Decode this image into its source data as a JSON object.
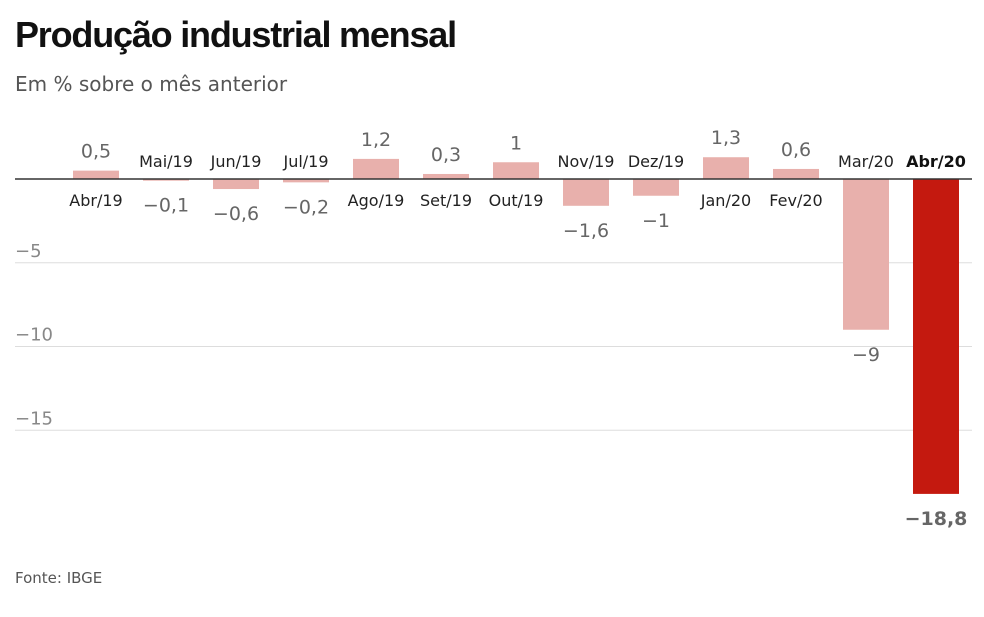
{
  "header": {
    "title": "Produção industrial mensal",
    "subtitle": "Em % sobre o mês anterior"
  },
  "footer": {
    "source": "Fonte: IBGE"
  },
  "colors": {
    "bar_default": "#e8b0ac",
    "bar_highlight": "#c4190f",
    "label_text": "#666666",
    "category_text": "#222222",
    "gridline": "#dddddd",
    "zero_line": "#333333"
  },
  "chart_data": {
    "type": "bar",
    "title": "Produção industrial mensal",
    "subtitle": "Em % sobre o mês anterior",
    "categories": [
      "Abr/19",
      "Mai/19",
      "Jun/19",
      "Jul/19",
      "Ago/19",
      "Set/19",
      "Out/19",
      "Nov/19",
      "Dez/19",
      "Jan/20",
      "Fev/20",
      "Mar/20",
      "Abr/20"
    ],
    "values": [
      0.5,
      -0.1,
      -0.6,
      -0.2,
      1.2,
      0.3,
      1,
      -1.6,
      -1,
      1.3,
      0.6,
      -9,
      -18.8
    ],
    "value_labels": [
      "0,5",
      "−0,1",
      "−0,6",
      "−0,2",
      "1,2",
      "0,3",
      "1",
      "−1,6",
      "−1",
      "1,3",
      "0,6",
      "−9",
      "−18,8"
    ],
    "highlight_index": 12,
    "yticks": [
      -5,
      -10,
      -15
    ],
    "ytick_labels": [
      "−5",
      "−10",
      "−15"
    ],
    "ylim": [
      -18.8,
      1.3
    ],
    "grid": true,
    "legend": "none",
    "xlabel": "",
    "ylabel": ""
  }
}
